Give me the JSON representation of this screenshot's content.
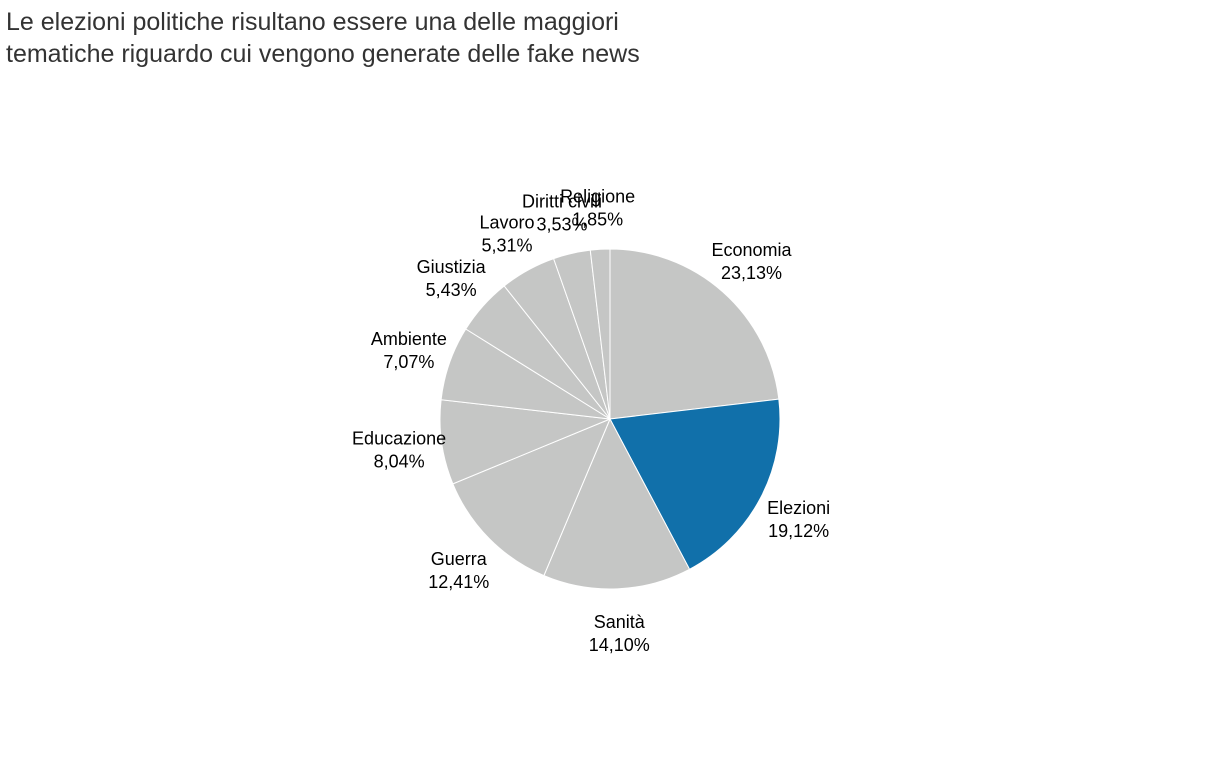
{
  "title_lines": [
    "Le elezioni politiche risultano essere una delle maggiori",
    "tematiche riguardo cui vengono generate delle fake news"
  ],
  "colors": {
    "highlight": "#1170aa",
    "default": "#c5c6c5",
    "separator": "#ffffff"
  },
  "chart_data": {
    "type": "pie",
    "start": "12 o'clock",
    "direction": "clockwise",
    "highlighted": "Elezioni",
    "slices": [
      {
        "label": "Economia",
        "display": "23,13%",
        "value": 23.13
      },
      {
        "label": "Elezioni",
        "display": "19,12%",
        "value": 19.12
      },
      {
        "label": "Sanità",
        "display": "14,10%",
        "value": 14.1
      },
      {
        "label": "Guerra",
        "display": "12,41%",
        "value": 12.41
      },
      {
        "label": "Educazione",
        "display": "8,04%",
        "value": 8.04
      },
      {
        "label": "Ambiente",
        "display": "7,07%",
        "value": 7.07
      },
      {
        "label": "Giustizia",
        "display": "5,43%",
        "value": 5.43
      },
      {
        "label": "Lavoro",
        "display": "5,31%",
        "value": 5.31
      },
      {
        "label": "Diritti civili",
        "display": "3,53%",
        "value": 3.53
      },
      {
        "label": "Religione",
        "display": "1,85%",
        "value": 1.85
      }
    ]
  }
}
